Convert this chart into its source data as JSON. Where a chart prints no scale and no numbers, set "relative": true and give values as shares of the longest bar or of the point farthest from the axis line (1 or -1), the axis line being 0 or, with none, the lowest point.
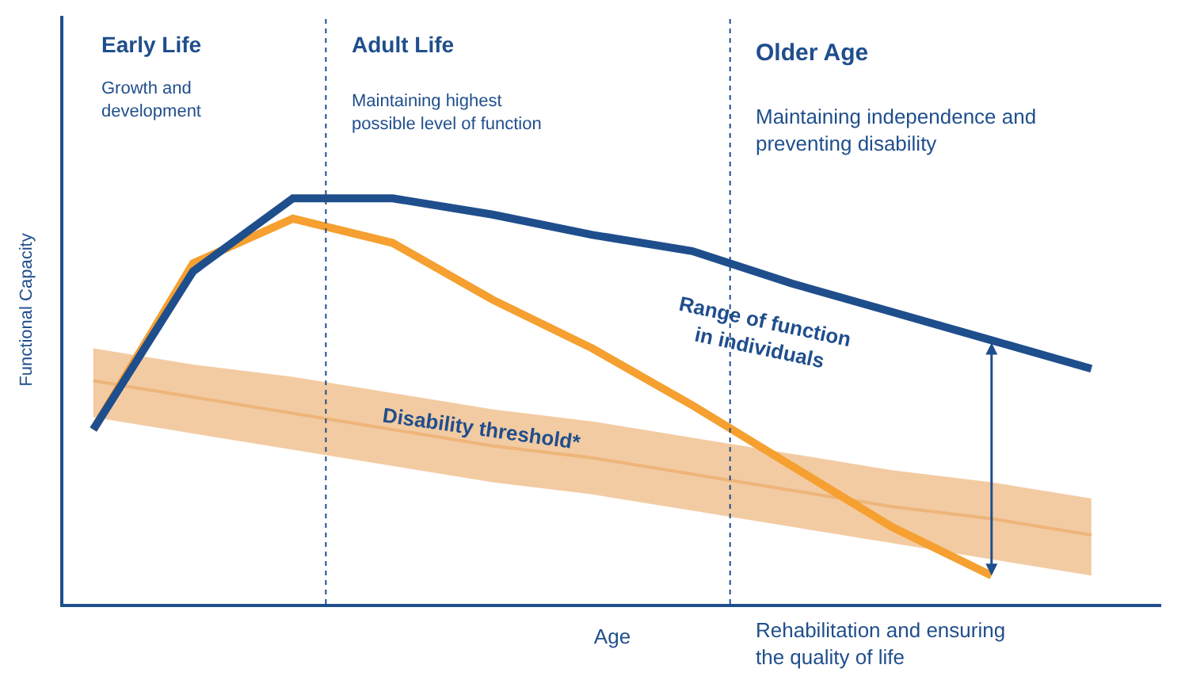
{
  "chart_data": {
    "type": "line",
    "relative": true,
    "xlabel": "Age",
    "ylabel": "Functional Capacity",
    "categories": [
      null,
      null,
      null,
      null,
      null,
      null,
      null,
      null,
      null,
      null,
      null
    ],
    "series": [
      {
        "type": "line",
        "name": "Disability threshold*",
        "color": "#eeb57a",
        "values": [
          0.55,
          0.51,
          0.47,
          0.43,
          0.39,
          0.36,
          0.32,
          0.28,
          0.24,
          0.21,
          0.17
        ],
        "lower": [
          0.46,
          0.42,
          0.38,
          0.34,
          0.3,
          0.27,
          0.23,
          0.19,
          0.15,
          0.11,
          0.07
        ],
        "upper": [
          0.63,
          0.59,
          0.56,
          0.52,
          0.48,
          0.45,
          0.41,
          0.37,
          0.33,
          0.3,
          0.26
        ]
      },
      {
        "color": "#f5a030",
        "values": [
          0.43,
          0.84,
          0.95,
          0.89,
          0.75,
          0.63,
          0.49,
          0.34,
          0.19,
          0.07,
          null
        ]
      },
      {
        "color": "#1f4e8c",
        "values": [
          0.43,
          0.82,
          1,
          1,
          0.96,
          0.91,
          0.87,
          0.79,
          0.72,
          0.65,
          0.58
        ]
      }
    ],
    "annotations": [
      "Early Life",
      "Growth and development",
      "Adult Life",
      "Maintaining highest possible level of function",
      "Older Age",
      "Maintaining independence and preventing disability",
      "Range of function in individuals",
      "Rehabilitation and ensuring the quality of life"
    ],
    "grid": false,
    "legend": false,
    "marker": "none",
    "line_style": "solid"
  }
}
